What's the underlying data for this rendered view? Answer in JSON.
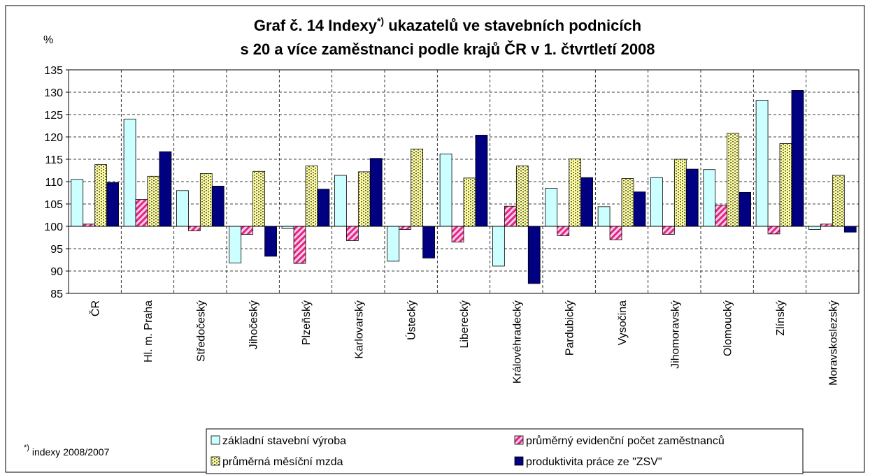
{
  "chart_data": {
    "type": "bar",
    "title_line1": [
      "Graf č. 14 Indexy",
      "*)",
      " ukazatelů ve stavebních podnicích"
    ],
    "title_line2": "s 20 a více zaměstnanci podle krajů ČR v 1. čtvrtletí 2008",
    "y_label": "%",
    "footnote": [
      "*)",
      " indexy 2008/2007"
    ],
    "categories": [
      "ČR",
      "Hl. m. Praha",
      "Středočeský",
      "Jihočeský",
      "Plzeňský",
      "Karlovarský",
      "Ústecký",
      "Liberecký",
      "Královéhradecký",
      "Pardubický",
      "Vysočina",
      "Jihomoravský",
      "Olomoucký",
      "Zlínský",
      "Moravskoslezský"
    ],
    "series": [
      {
        "name": "základní stavební výroba",
        "color": "#ccffff",
        "pattern": "none",
        "values": [
          110.5,
          124,
          108,
          91.8,
          99.5,
          111.4,
          92.2,
          116.2,
          91.1,
          108.5,
          104.4,
          110.9,
          112.7,
          128.2,
          99.3
        ]
      },
      {
        "name": "průměrný evidenční počet zaměstnanců",
        "color": "#ff3399",
        "pattern": "diagonal",
        "values": [
          100.5,
          106,
          99,
          98.2,
          91.7,
          96.8,
          99.3,
          96.5,
          104.5,
          97.9,
          97.0,
          98.2,
          104.7,
          98.3,
          100.5
        ]
      },
      {
        "name": "průměrná měsíční mzda",
        "color": "#ffff99",
        "pattern": "dots",
        "values": [
          113.8,
          111.2,
          111.8,
          112.3,
          113.5,
          112.2,
          117.3,
          110.8,
          113.5,
          115.1,
          110.7,
          115,
          120.8,
          118.5,
          111.4
        ]
      },
      {
        "name": "produktivita práce ze \"ZSV\"",
        "color": "#000080",
        "pattern": "none",
        "values": [
          109.8,
          116.7,
          109,
          93.3,
          108.3,
          115.2,
          92.9,
          120.4,
          87.2,
          110.9,
          107.7,
          112.8,
          107.6,
          130.4,
          98.7
        ]
      }
    ],
    "baseline": 100,
    "ylim": [
      85,
      135
    ],
    "yticks": [
      85,
      90,
      95,
      100,
      105,
      110,
      115,
      120,
      125,
      130,
      135
    ],
    "grid": true
  }
}
